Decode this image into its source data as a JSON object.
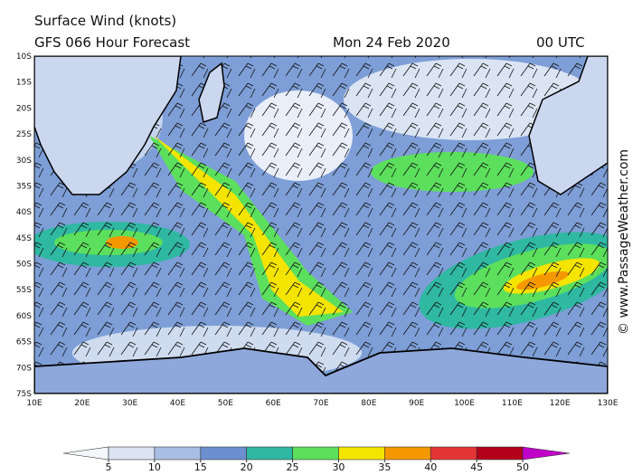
{
  "header": {
    "title": "Surface Wind (knots)",
    "subtitle": "GFS 066 Hour Forecast",
    "date": "Mon 24 Feb 2020",
    "time": "00 UTC"
  },
  "map": {
    "lat_labels": [
      "10S",
      "15S",
      "20S",
      "25S",
      "30S",
      "35S",
      "40S",
      "45S",
      "50S",
      "55S",
      "60S",
      "65S",
      "70S",
      "75S"
    ],
    "lon_labels": [
      "10E",
      "20E",
      "30E",
      "40E",
      "50E",
      "60E",
      "70E",
      "80E",
      "90E",
      "100E",
      "110E",
      "120E",
      "130E"
    ]
  },
  "colorbar": {
    "ticks": [
      5,
      10,
      15,
      20,
      25,
      30,
      35,
      40,
      45,
      50
    ],
    "colors": [
      "#f4f6fb",
      "#dbe4f3",
      "#a9bee3",
      "#6b8fd0",
      "#2fb8a2",
      "#5cdf5c",
      "#f4e400",
      "#f59800",
      "#e53535",
      "#b3001b",
      "#c000c8"
    ]
  },
  "credit": "© www.PassageWeather.com"
}
